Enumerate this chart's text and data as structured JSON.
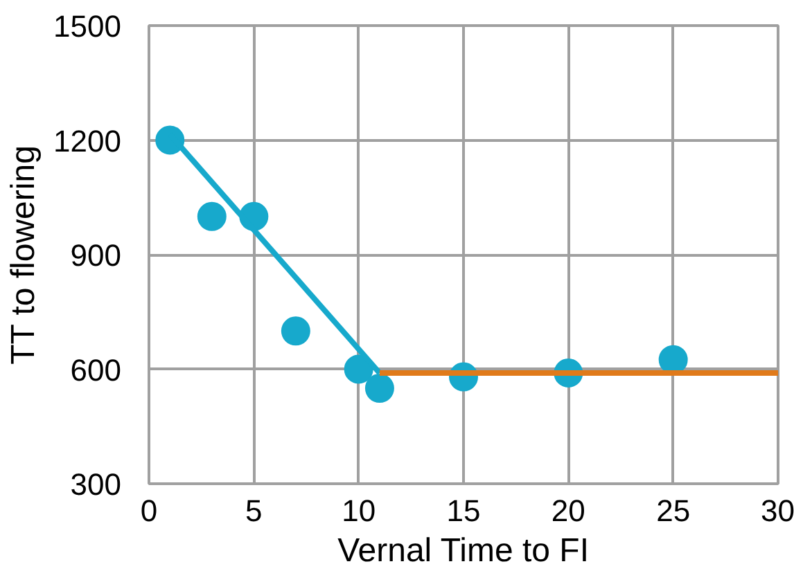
{
  "chart_data": {
    "type": "scatter",
    "xlabel": "Vernal Time to FI",
    "ylabel": "TT to flowering",
    "xlim": [
      0,
      30
    ],
    "ylim": [
      300,
      1500
    ],
    "xticks": [
      0,
      5,
      10,
      15,
      20,
      25,
      30
    ],
    "yticks": [
      300,
      600,
      900,
      1200,
      1500
    ],
    "grid": true,
    "marker": "circle",
    "series": [
      {
        "color": "#17a9cc",
        "x": [
          1,
          3,
          5,
          7,
          10,
          11,
          15,
          20,
          25
        ],
        "values": [
          1200,
          1000,
          1000,
          700,
          600,
          550,
          580,
          590,
          625
        ]
      },
      {
        "type": "line",
        "color": "#17a9cc",
        "x": [
          1,
          11
        ],
        "values": [
          1215,
          590
        ],
        "marker": "none",
        "line_style": "solid"
      },
      {
        "type": "line",
        "color": "#e07a1a",
        "x": [
          11,
          30
        ],
        "values": [
          590,
          590
        ],
        "marker": "none",
        "line_style": "solid"
      }
    ]
  }
}
